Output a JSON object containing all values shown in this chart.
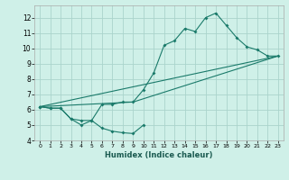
{
  "bg_color": "#cff0e8",
  "grid_color": "#aad4cc",
  "line_color": "#1a7a6a",
  "xlabel": "Humidex (Indice chaleur)",
  "xlim": [
    -0.5,
    23.5
  ],
  "ylim": [
    4,
    12.8
  ],
  "yticks": [
    4,
    5,
    6,
    7,
    8,
    9,
    10,
    11,
    12
  ],
  "xticks": [
    0,
    1,
    2,
    3,
    4,
    5,
    6,
    7,
    8,
    9,
    10,
    11,
    12,
    13,
    14,
    15,
    16,
    17,
    18,
    19,
    20,
    21,
    22,
    23
  ],
  "line1_x": [
    0,
    1,
    2,
    3,
    4,
    5,
    6,
    7,
    8,
    9,
    10
  ],
  "line1_y": [
    6.2,
    6.1,
    6.1,
    5.4,
    5.0,
    5.3,
    4.8,
    4.6,
    4.5,
    4.45,
    5.0
  ],
  "line2_x": [
    0,
    1,
    2,
    3,
    4,
    5,
    6,
    7,
    8,
    9,
    10,
    11,
    12,
    13,
    14,
    15,
    16,
    17,
    18,
    19,
    20,
    21,
    22,
    23
  ],
  "line2_y": [
    6.2,
    6.1,
    6.1,
    5.4,
    5.3,
    5.3,
    6.35,
    6.35,
    6.5,
    6.5,
    7.3,
    8.4,
    10.2,
    10.5,
    11.3,
    11.1,
    12.0,
    12.3,
    11.5,
    10.7,
    10.1,
    9.9,
    9.5,
    9.5
  ],
  "line3_x": [
    0,
    23
  ],
  "line3_y": [
    6.2,
    9.5
  ],
  "line4_x": [
    0,
    9,
    23
  ],
  "line4_y": [
    6.2,
    6.5,
    9.5
  ],
  "figsize": [
    3.2,
    2.0
  ],
  "dpi": 100
}
